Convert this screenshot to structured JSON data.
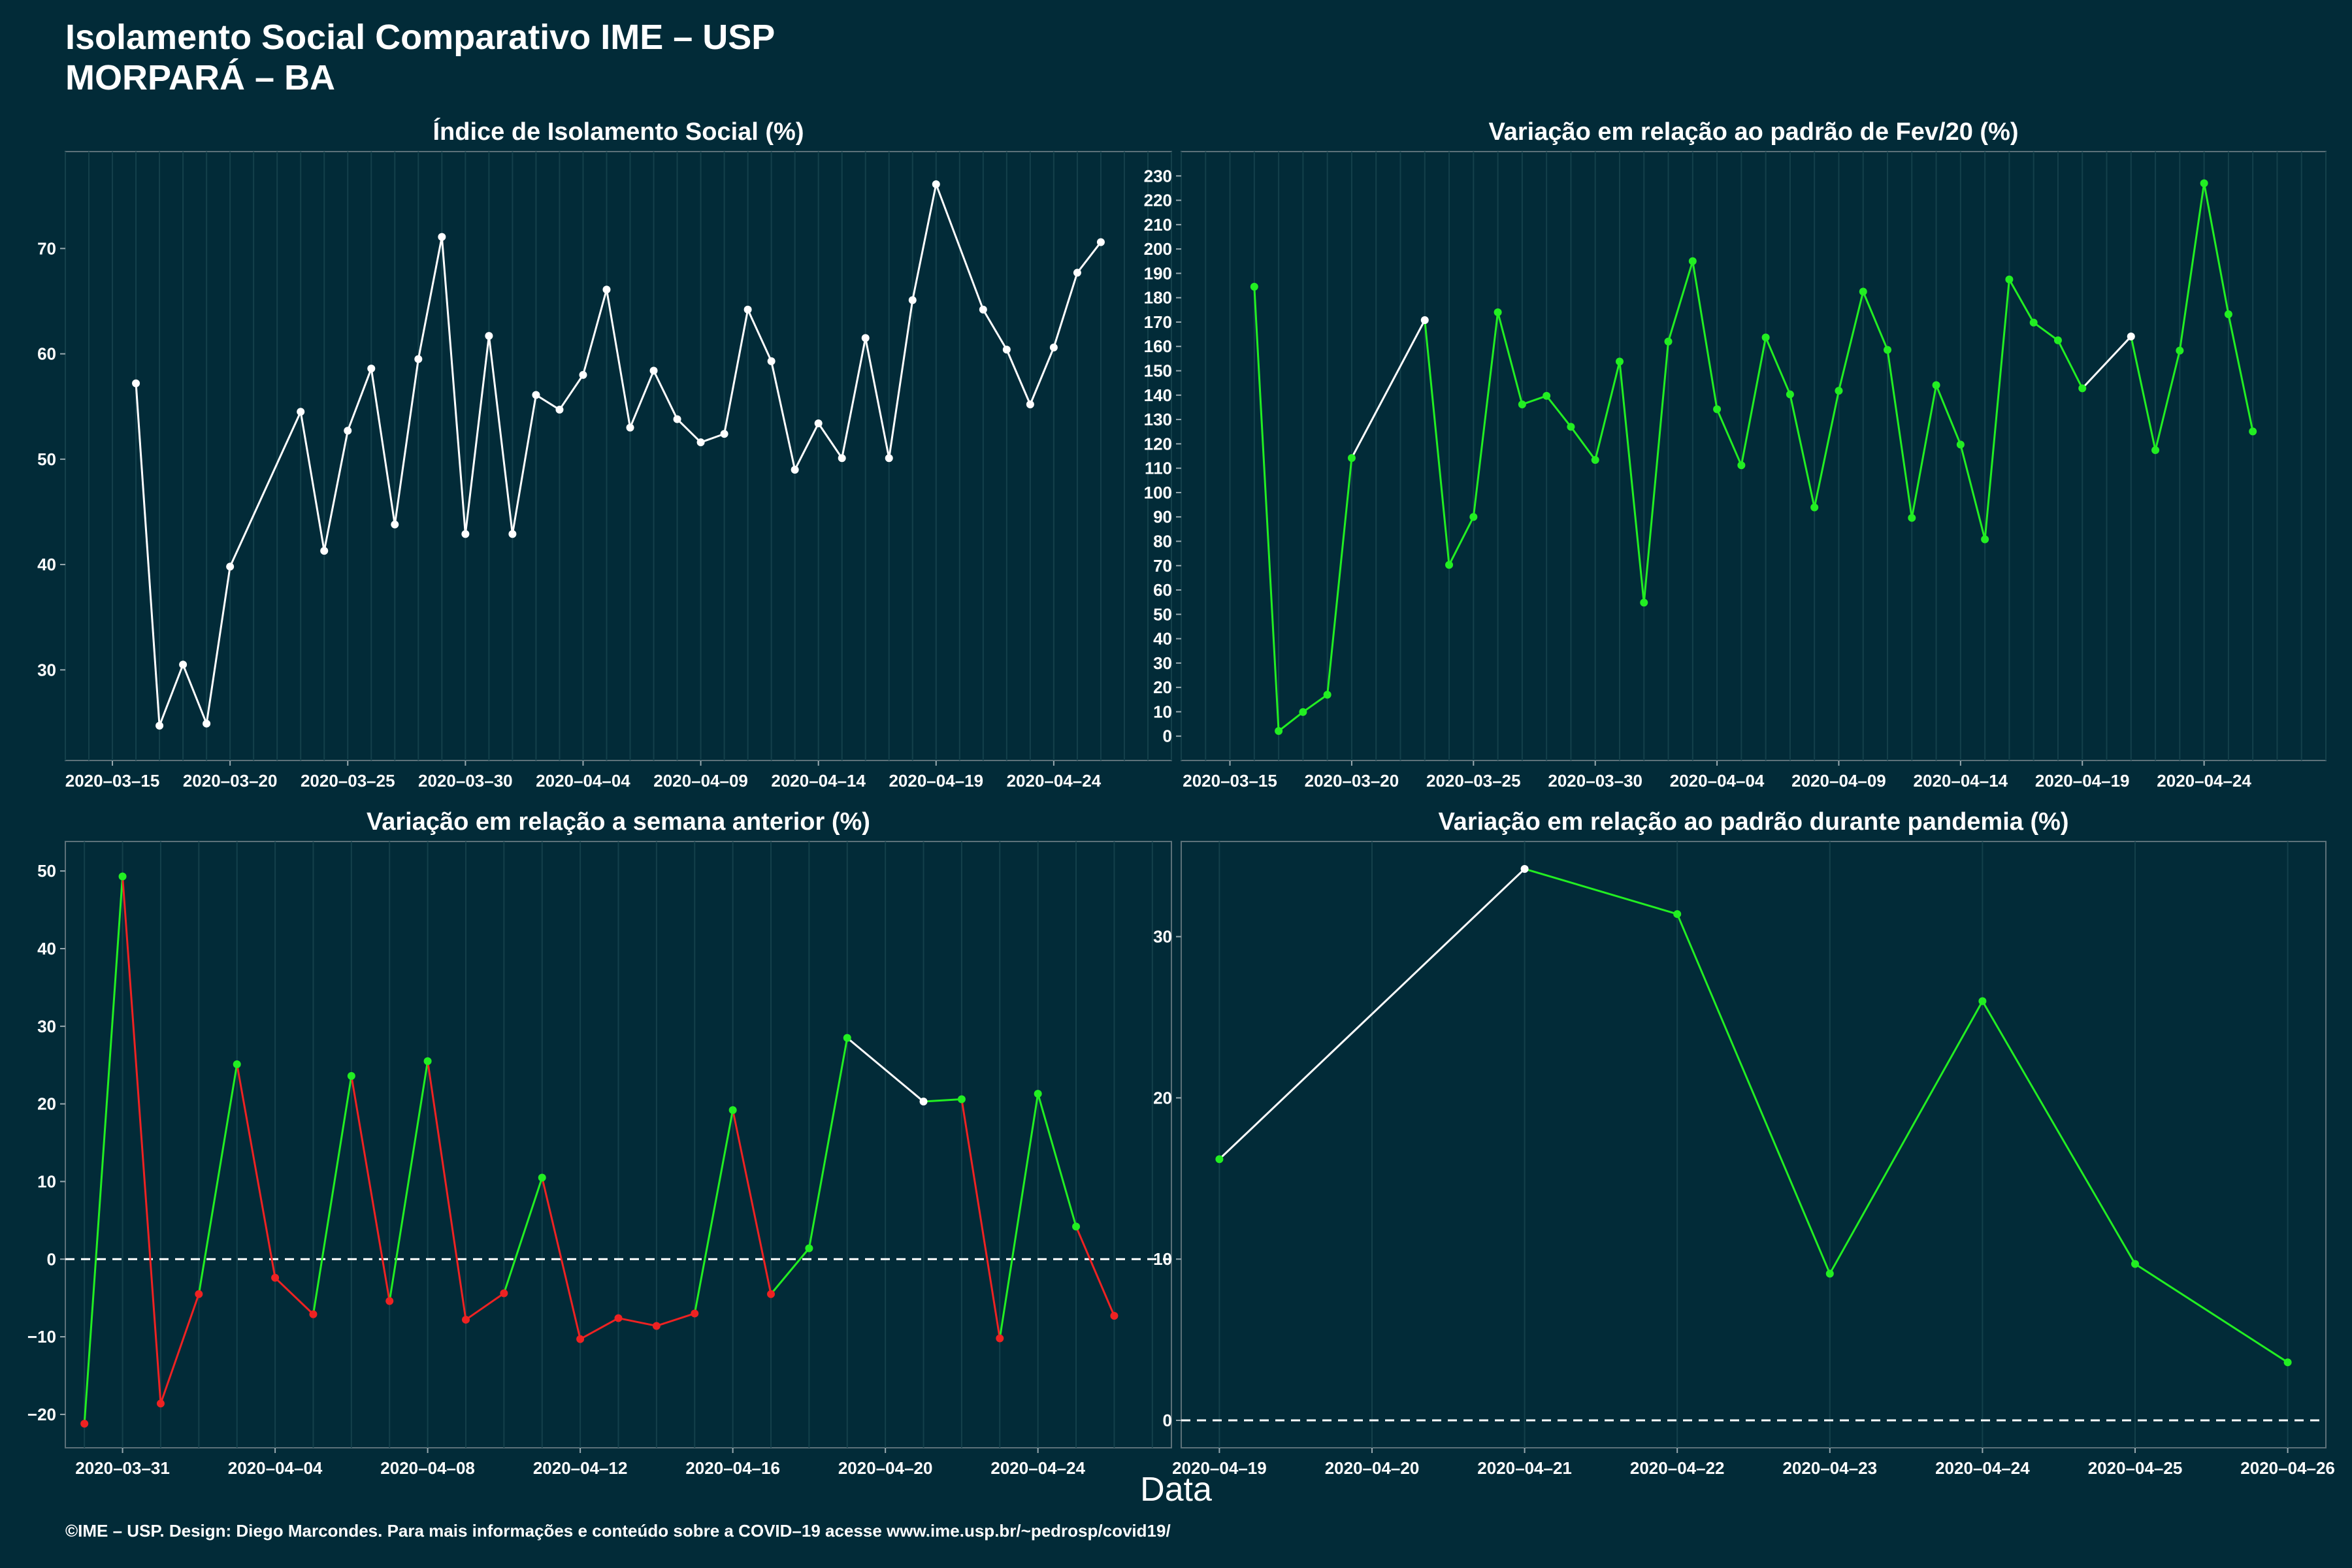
{
  "header": {
    "title": "Isolamento Social Comparativo IME – USP",
    "subtitle": "MORPARÁ – BA"
  },
  "xlabel": "Data",
  "footer": "©IME – USP. Design: Diego Marcondes. Para mais informações e conteúdo sobre a COVID–19 acesse www.ime.usp.br/~pedrosp/covid19/",
  "colors": {
    "background": "#022b38",
    "white": "#ffffff",
    "green": "#22ee22",
    "red": "#ee2222"
  },
  "chart_data": [
    {
      "type": "line",
      "title": "Índice de Isolamento Social (%)",
      "xlim": [
        "2020-03-13",
        "2020-04-29"
      ],
      "ylim": [
        21.4,
        79.2
      ],
      "yticks": [
        30,
        40,
        50,
        60,
        70
      ],
      "xticks": [
        "2020-03-15",
        "2020-03-20",
        "2020-03-25",
        "2020-03-30",
        "2020-04-04",
        "2020-04-09",
        "2020-04-14",
        "2020-04-19",
        "2020-04-24"
      ],
      "series": [
        {
          "x": [
            "2020-03-16",
            "2020-03-17",
            "2020-03-18",
            "2020-03-19",
            "2020-03-20",
            "2020-03-23",
            "2020-03-24",
            "2020-03-25",
            "2020-03-26",
            "2020-03-27",
            "2020-03-28",
            "2020-03-29",
            "2020-03-30",
            "2020-03-31",
            "2020-04-01",
            "2020-04-02",
            "2020-04-03",
            "2020-04-04",
            "2020-04-05",
            "2020-04-06",
            "2020-04-07",
            "2020-04-08",
            "2020-04-09",
            "2020-04-10",
            "2020-04-11",
            "2020-04-12",
            "2020-04-13",
            "2020-04-14",
            "2020-04-15",
            "2020-04-16",
            "2020-04-17",
            "2020-04-18",
            "2020-04-19",
            "2020-04-21",
            "2020-04-22",
            "2020-04-23",
            "2020-04-24",
            "2020-04-25",
            "2020-04-26"
          ],
          "values": [
            57.2,
            24.7,
            30.5,
            24.9,
            39.8,
            54.5,
            41.3,
            52.7,
            58.6,
            43.8,
            59.5,
            71.1,
            42.9,
            61.7,
            42.9,
            56.1,
            54.7,
            58.0,
            66.1,
            53.0,
            58.4,
            53.8,
            51.6,
            52.4,
            64.2,
            59.3,
            49.0,
            53.4,
            50.1,
            61.5,
            50.1,
            65.1,
            76.1,
            64.2,
            60.4,
            55.2,
            60.6,
            67.7,
            70.6
          ],
          "colors": [
            "w",
            "w",
            "w",
            "w",
            "w",
            "w",
            "w",
            "w",
            "w",
            "w",
            "w",
            "w",
            "w",
            "w",
            "w",
            "w",
            "w",
            "w",
            "w",
            "w",
            "w",
            "w",
            "w",
            "w",
            "w",
            "w",
            "w",
            "w",
            "w",
            "w",
            "w",
            "w",
            "w",
            "w",
            "w",
            "w",
            "w",
            "w",
            "w"
          ]
        }
      ],
      "hline": null
    },
    {
      "type": "line",
      "title": "Variação em relação ao padrão de Fev/20 (%)",
      "xlim": [
        "2020-03-13",
        "2020-04-29"
      ],
      "ylim": [
        -10,
        240
      ],
      "yticks": [
        0,
        10,
        20,
        30,
        40,
        50,
        60,
        70,
        80,
        90,
        100,
        110,
        120,
        130,
        140,
        150,
        160,
        170,
        180,
        190,
        200,
        210,
        220,
        230
      ],
      "xticks": [
        "2020-03-15",
        "2020-03-20",
        "2020-03-25",
        "2020-03-30",
        "2020-04-04",
        "2020-04-09",
        "2020-04-14",
        "2020-04-19",
        "2020-04-24"
      ],
      "series": [
        {
          "x": [
            "2020-03-16",
            "2020-03-17",
            "2020-03-18",
            "2020-03-19",
            "2020-03-20",
            "2020-03-23",
            "2020-03-24",
            "2020-03-25",
            "2020-03-26",
            "2020-03-27",
            "2020-03-28",
            "2020-03-29",
            "2020-03-30",
            "2020-03-31",
            "2020-04-01",
            "2020-04-02",
            "2020-04-03",
            "2020-04-04",
            "2020-04-05",
            "2020-04-06",
            "2020-04-07",
            "2020-04-08",
            "2020-04-09",
            "2020-04-10",
            "2020-04-11",
            "2020-04-12",
            "2020-04-13",
            "2020-04-14",
            "2020-04-15",
            "2020-04-16",
            "2020-04-17",
            "2020-04-18",
            "2020-04-19",
            "2020-04-21",
            "2020-04-22",
            "2020-04-23",
            "2020-04-24",
            "2020-04-25",
            "2020-04-26"
          ],
          "values": [
            184.5,
            2.1,
            9.9,
            17.0,
            114.2,
            170.8,
            70.3,
            90.0,
            174.0,
            136.2,
            139.7,
            127.0,
            113.4,
            153.8,
            54.8,
            162.0,
            195.0,
            134.2,
            111.2,
            163.7,
            140.3,
            93.9,
            141.8,
            182.5,
            158.6,
            89.6,
            144.1,
            119.7,
            80.8,
            187.5,
            169.8,
            162.5,
            142.8,
            164.1,
            117.4,
            158.3,
            227.0,
            173.2,
            125.1
          ],
          "colors": [
            "g",
            "g",
            "g",
            "g",
            "g",
            "w",
            "g",
            "g",
            "g",
            "g",
            "g",
            "g",
            "g",
            "g",
            "g",
            "g",
            "g",
            "g",
            "g",
            "g",
            "g",
            "g",
            "g",
            "g",
            "g",
            "g",
            "g",
            "g",
            "g",
            "g",
            "g",
            "g",
            "g",
            "w",
            "g",
            "g",
            "g",
            "g",
            "g"
          ]
        }
      ],
      "hline": null
    },
    {
      "type": "line",
      "title": "Variação em relação a semana anterior (%)",
      "xlim": [
        "2020-03-29 12:00",
        "2020-04-27 12:00"
      ],
      "ylim": [
        -24.3,
        53.8
      ],
      "yticks": [
        -20,
        -10,
        0,
        10,
        20,
        30,
        40,
        50
      ],
      "xticks": [
        "2020-03-31",
        "2020-04-04",
        "2020-04-08",
        "2020-04-12",
        "2020-04-16",
        "2020-04-20",
        "2020-04-24"
      ],
      "series": [
        {
          "x": [
            "2020-03-30",
            "2020-03-31",
            "2020-04-01",
            "2020-04-02",
            "2020-04-03",
            "2020-04-04",
            "2020-04-05",
            "2020-04-06",
            "2020-04-07",
            "2020-04-08",
            "2020-04-09",
            "2020-04-10",
            "2020-04-11",
            "2020-04-12",
            "2020-04-13",
            "2020-04-14",
            "2020-04-15",
            "2020-04-16",
            "2020-04-17",
            "2020-04-18",
            "2020-04-19",
            "2020-04-21",
            "2020-04-22",
            "2020-04-23",
            "2020-04-24",
            "2020-04-25",
            "2020-04-26"
          ],
          "values": [
            -21.2,
            49.3,
            -18.6,
            -4.5,
            25.1,
            -2.4,
            -7.1,
            23.6,
            -5.4,
            25.5,
            -7.8,
            -4.4,
            10.5,
            -10.3,
            -7.6,
            -8.6,
            -7.0,
            19.2,
            -4.5,
            1.4,
            28.5,
            20.3,
            20.6,
            -10.2,
            21.3,
            4.2,
            -7.3
          ],
          "colors": [
            "r",
            "g",
            "r",
            "r",
            "g",
            "r",
            "r",
            "g",
            "r",
            "g",
            "r",
            "r",
            "g",
            "r",
            "r",
            "r",
            "r",
            "g",
            "r",
            "g",
            "g",
            "w",
            "g",
            "r",
            "g",
            "g",
            "r"
          ]
        }
      ],
      "hline": 0
    },
    {
      "type": "line",
      "title": "Variação em relação ao padrão durante pandemia (%)",
      "xlim": [
        "2020-04-18 18:00",
        "2020-04-26 06:00"
      ],
      "ylim": [
        -1.7,
        35.9
      ],
      "yticks": [
        0,
        10,
        20,
        30
      ],
      "xticks": [
        "2020-04-19",
        "2020-04-20",
        "2020-04-21",
        "2020-04-22",
        "2020-04-23",
        "2020-04-24",
        "2020-04-25",
        "2020-04-26"
      ],
      "series": [
        {
          "x": [
            "2020-04-19",
            "2020-04-21",
            "2020-04-22",
            "2020-04-23",
            "2020-04-24",
            "2020-04-25",
            "2020-04-26"
          ],
          "values": [
            16.2,
            34.2,
            31.4,
            9.1,
            26.0,
            9.7,
            3.6
          ],
          "colors": [
            "g",
            "w",
            "g",
            "g",
            "g",
            "g",
            "g"
          ]
        }
      ],
      "hline": 0
    }
  ]
}
